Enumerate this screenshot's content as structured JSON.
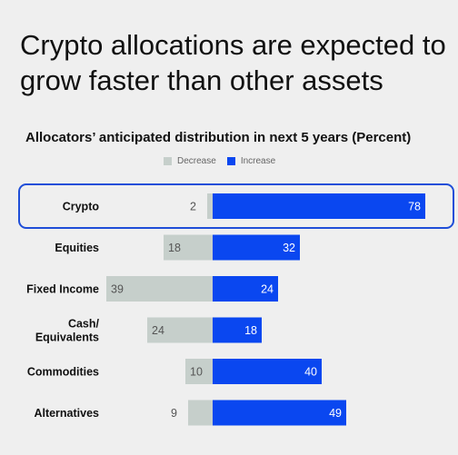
{
  "header": {
    "title": "Crypto allocations are expected to grow faster than other assets"
  },
  "colors": {
    "decrease": "#c6cfcb",
    "increase": "#0a47f0",
    "highlight_border": "#1f4ed8"
  },
  "chart_data": {
    "type": "bar",
    "orientation": "horizontal-diverging",
    "title": "Allocators’ anticipated distribution in next 5 years (Percent)",
    "categories": [
      "Crypto",
      "Equities",
      "Fixed Income",
      "Cash/ Equivalents",
      "Commodities",
      "Alternatives"
    ],
    "series": [
      {
        "name": "Decrease",
        "values": [
          2,
          18,
          39,
          24,
          10,
          9
        ]
      },
      {
        "name": "Increase",
        "values": [
          78,
          32,
          24,
          18,
          40,
          49
        ]
      }
    ],
    "highlighted_category": "Crypto",
    "legend_position": "top-center",
    "grid": false
  }
}
